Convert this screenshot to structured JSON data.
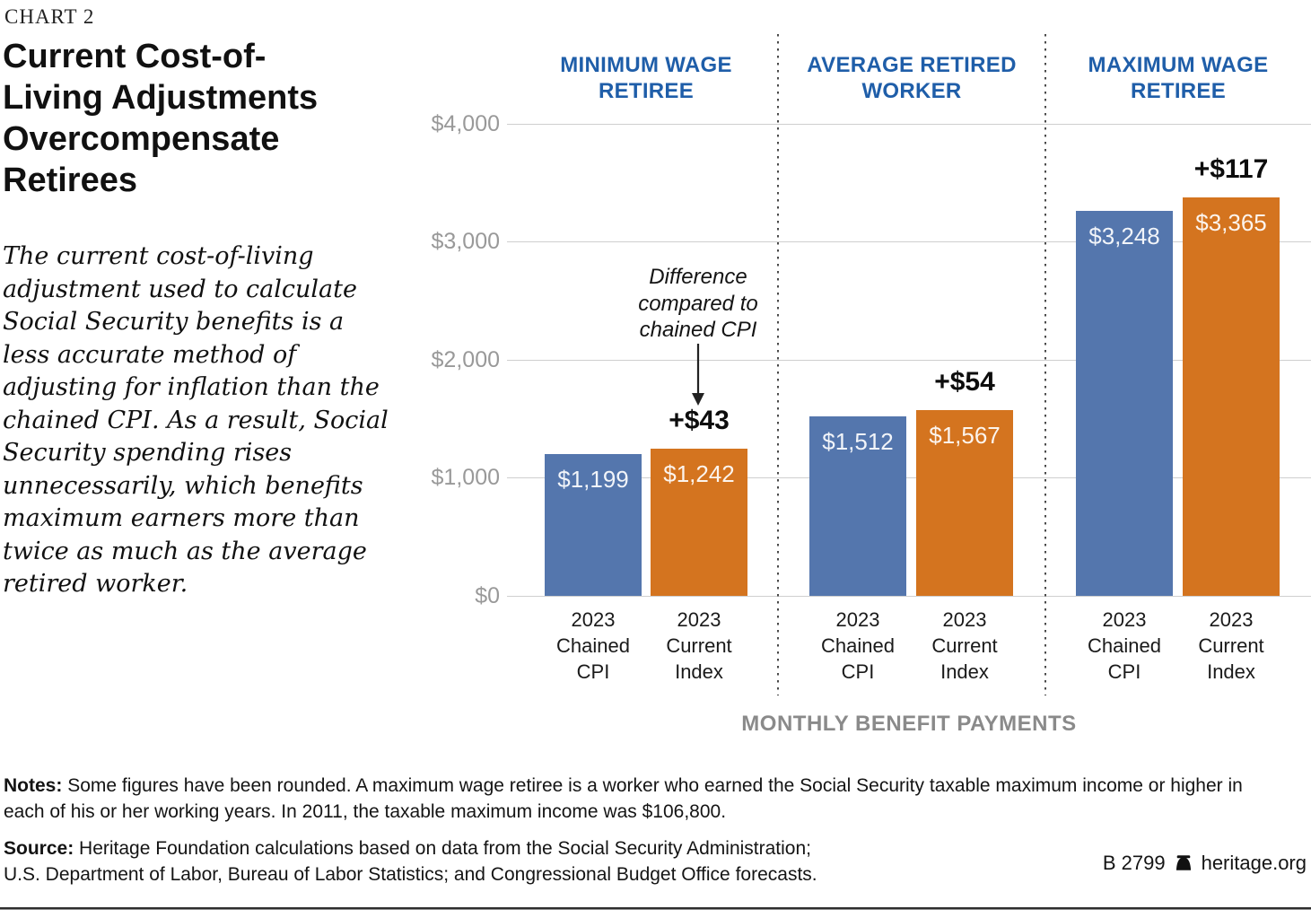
{
  "chart_label": "CHART 2",
  "title": "Current Cost-of-Living Adjustments Overcompensate Retirees",
  "description": "The current cost-of-living adjustment used to calculate Social Security benefits is a less accurate method of adjusting for inflation than the chained CPI. As a result, Social Security spending rises unnecessarily, which benefits maximum earners more than twice as much as the average retired worker.",
  "chart_data": {
    "type": "bar",
    "xlabel": "MONTHLY BENEFIT PAYMENTS",
    "ylabel": "",
    "ylim": [
      0,
      4000
    ],
    "grid": true,
    "ytick_values": [
      4000,
      3000,
      2000,
      1000,
      0
    ],
    "ytick_labels": [
      "$4,000",
      "$3,000",
      "$2,000",
      "$1,000",
      "$0"
    ],
    "annotation": {
      "text": "Difference\ncompared to\nchained CPI"
    },
    "colors": {
      "chained_cpi_bar": "#5476ad",
      "current_index_bar": "#d4741f",
      "header_blue": "#1f5ea9"
    },
    "groups": [
      {
        "header": "MINIMUM WAGE\nRETIREE",
        "bars": [
          {
            "series": "2023 Chained CPI",
            "tick_label": "2023\nChained\nCPI",
            "value": 1199,
            "value_label": "$1,199"
          },
          {
            "series": "2023 Current Index",
            "tick_label": "2023\nCurrent\nIndex",
            "value": 1242,
            "value_label": "$1,242",
            "difference_label": "+$43"
          }
        ]
      },
      {
        "header": "AVERAGE RETIRED\nWORKER",
        "bars": [
          {
            "series": "2023 Chained CPI",
            "tick_label": "2023\nChained\nCPI",
            "value": 1512,
            "value_label": "$1,512"
          },
          {
            "series": "2023 Current Index",
            "tick_label": "2023\nCurrent\nIndex",
            "value": 1567,
            "value_label": "$1,567",
            "difference_label": "+$54"
          }
        ]
      },
      {
        "header": "MAXIMUM WAGE\nRETIREE",
        "bars": [
          {
            "series": "2023 Chained CPI",
            "tick_label": "2023\nChained\nCPI",
            "value": 3248,
            "value_label": "$3,248"
          },
          {
            "series": "2023 Current Index",
            "tick_label": "2023\nCurrent\nIndex",
            "value": 3365,
            "value_label": "$3,365",
            "difference_label": "+$117"
          }
        ]
      }
    ]
  },
  "notes": {
    "label": "Notes:",
    "text": "Some figures have been rounded. A maximum wage retiree is a worker who earned the Social Security taxable maximum income or higher in each of his or her working years. In 2011, the taxable maximum income was $106,800."
  },
  "source": {
    "label": "Source:",
    "lines": [
      "Heritage Foundation calculations based on data from the Social Security Administration;",
      "U.S. Department of Labor, Bureau of Labor Statistics; and Congressional Budget Office forecasts."
    ]
  },
  "footer": {
    "document_id": "B 2799",
    "site": "heritage.org"
  }
}
